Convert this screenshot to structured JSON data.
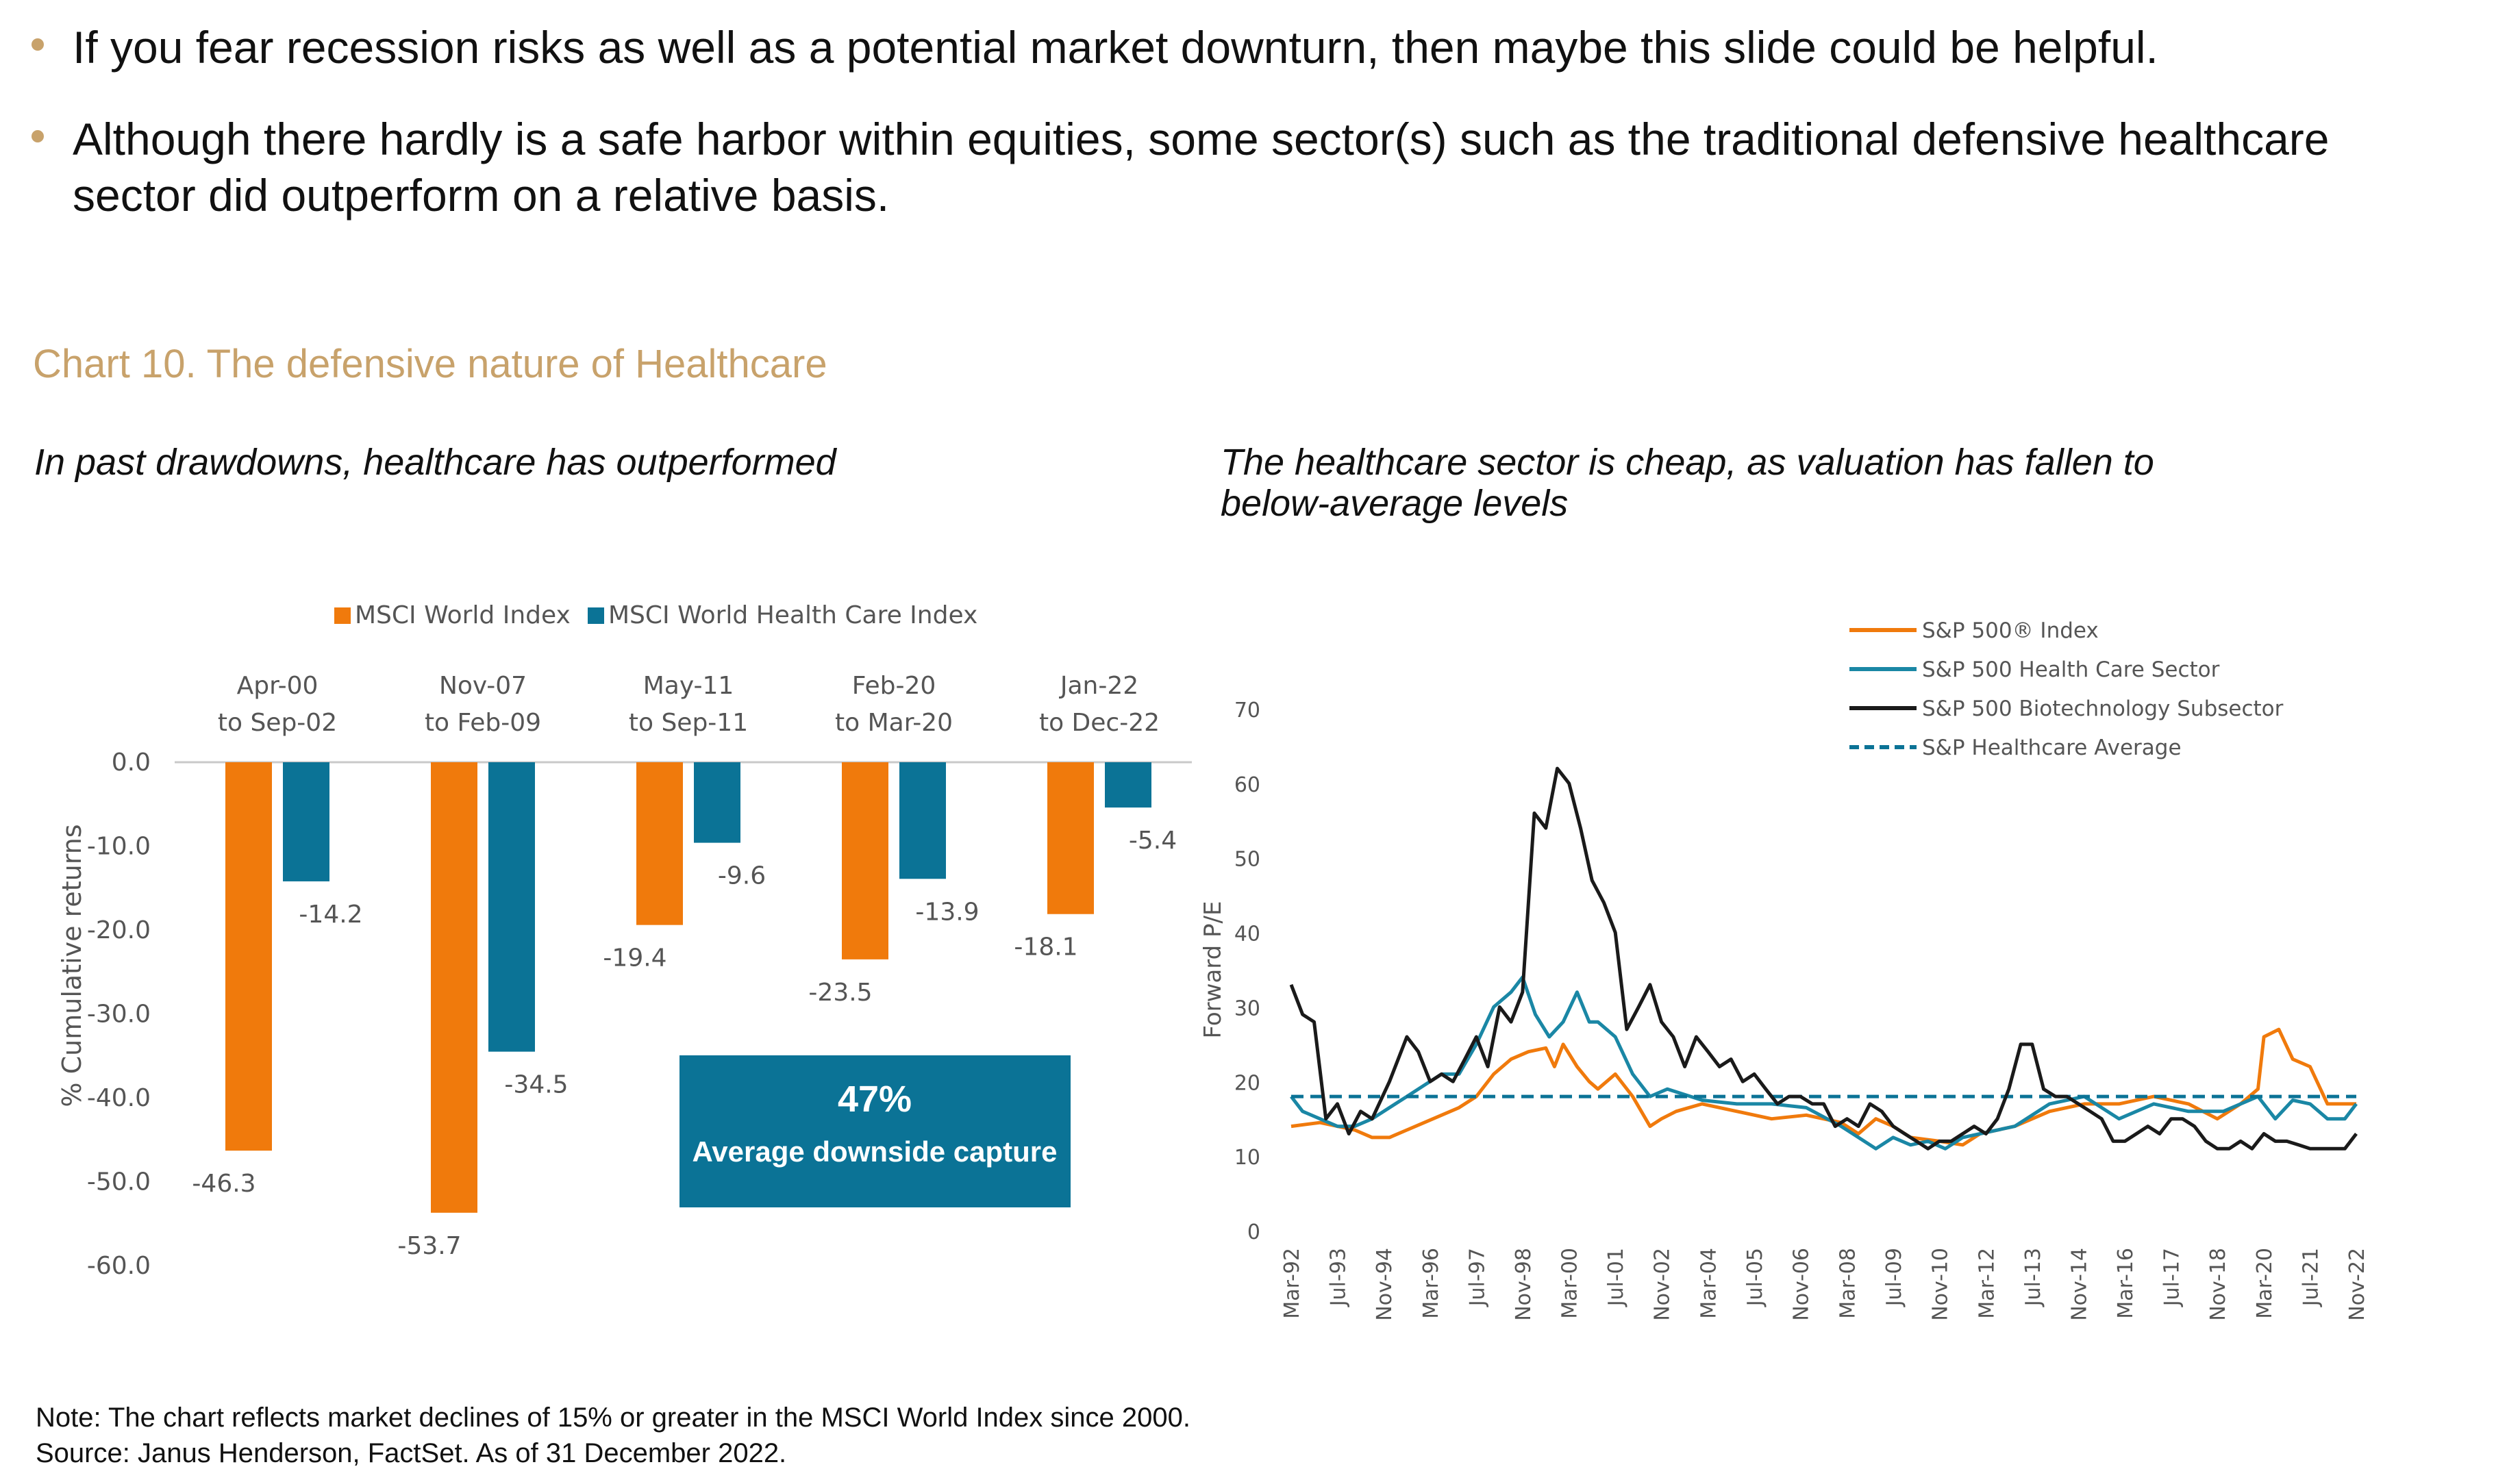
{
  "bullets": [
    "If you fear recession risks as well as a potential market downturn, then maybe this slide could be helpful.",
    "Although there hardly is a safe harbor within equities, some sector(s) such as the traditional defensive healthcare",
    "sector did outperform on a relative basis."
  ],
  "chart_heading": "Chart 10. The defensive nature of Healthcare",
  "left_subtitle": "In past drawdowns, healthcare has outperformed",
  "right_subtitle": "The healthcare sector is cheap, as valuation has fallen to below-average levels",
  "colors": {
    "accent": "#C8A26B",
    "orange": "#F07A0C",
    "teal": "#0B7396",
    "teal_line": "#1A87A5",
    "black": "#1A1A1A"
  },
  "chart_data": [
    {
      "type": "bar",
      "title": "In past drawdowns, healthcare has outperformed",
      "ylabel": "% Cumulative returns",
      "ylim": [
        -60,
        0
      ],
      "yticks": [
        "0.0",
        "-10.0",
        "-20.0",
        "-30.0",
        "-40.0",
        "-50.0",
        "-60.0"
      ],
      "categories": [
        {
          "line1": "Apr-00",
          "line2": "to Sep-02"
        },
        {
          "line1": "Nov-07",
          "line2": "to Feb-09"
        },
        {
          "line1": "May-11",
          "line2": "to Sep-11"
        },
        {
          "line1": "Feb-20",
          "line2": "to Mar-20"
        },
        {
          "line1": "Jan-22",
          "line2": "to Dec-22"
        }
      ],
      "series": [
        {
          "name": "MSCI World Index",
          "values": [
            -46.3,
            -53.7,
            -19.4,
            -23.5,
            -18.1
          ],
          "labels": [
            "-46.3",
            "-53.7",
            "-19.4",
            "-23.5",
            "-18.1"
          ]
        },
        {
          "name": "MSCI World Health Care Index",
          "values": [
            -14.2,
            -34.5,
            -9.6,
            -13.9,
            -5.4
          ],
          "labels": [
            "-14.2",
            "-34.5",
            "-9.6",
            "-13.9",
            "-5.4"
          ]
        }
      ],
      "callout": {
        "value": "47%",
        "label": "Average downside capture"
      }
    },
    {
      "type": "line",
      "title": "The healthcare sector is cheap, as valuation has fallen to below-average levels",
      "ylabel": "Forward P/E",
      "ylim": [
        0,
        70
      ],
      "yticks": [
        "0",
        "10",
        "20",
        "30",
        "40",
        "50",
        "60",
        "70"
      ],
      "x_range": [
        1992.17,
        2022.83
      ],
      "x_ticks": [
        {
          "t": 1992.17,
          "label": "Mar-92"
        },
        {
          "t": 1993.5,
          "label": "Jul-93"
        },
        {
          "t": 1994.83,
          "label": "Nov-94"
        },
        {
          "t": 1996.17,
          "label": "Mar-96"
        },
        {
          "t": 1997.5,
          "label": "Jul-97"
        },
        {
          "t": 1998.83,
          "label": "Nov-98"
        },
        {
          "t": 2000.17,
          "label": "Mar-00"
        },
        {
          "t": 2001.5,
          "label": "Jul-01"
        },
        {
          "t": 2002.83,
          "label": "Nov-02"
        },
        {
          "t": 2004.17,
          "label": "Mar-04"
        },
        {
          "t": 2005.5,
          "label": "Jul-05"
        },
        {
          "t": 2006.83,
          "label": "Nov-06"
        },
        {
          "t": 2008.17,
          "label": "Mar-08"
        },
        {
          "t": 2009.5,
          "label": "Jul-09"
        },
        {
          "t": 2010.83,
          "label": "Nov-10"
        },
        {
          "t": 2012.17,
          "label": "Mar-12"
        },
        {
          "t": 2013.5,
          "label": "Jul-13"
        },
        {
          "t": 2014.83,
          "label": "Nov-14"
        },
        {
          "t": 2016.17,
          "label": "Mar-16"
        },
        {
          "t": 2017.5,
          "label": "Jul-17"
        },
        {
          "t": 2018.83,
          "label": "Nov-18"
        },
        {
          "t": 2020.17,
          "label": "Mar-20"
        },
        {
          "t": 2021.5,
          "label": "Jul-21"
        },
        {
          "t": 2022.83,
          "label": "Nov-22"
        }
      ],
      "series": [
        {
          "name": "S&P 500® Index",
          "points": [
            [
              1992.17,
              14
            ],
            [
              1993,
              14.5
            ],
            [
              1993.5,
              14
            ],
            [
              1994,
              13.5
            ],
            [
              1994.5,
              12.5
            ],
            [
              1995,
              12.5
            ],
            [
              1995.5,
              13.5
            ],
            [
              1996,
              14.5
            ],
            [
              1996.5,
              15.5
            ],
            [
              1997,
              16.5
            ],
            [
              1997.5,
              18
            ],
            [
              1998,
              21
            ],
            [
              1998.5,
              23
            ],
            [
              1999,
              24
            ],
            [
              1999.5,
              24.5
            ],
            [
              1999.75,
              22
            ],
            [
              2000,
              25
            ],
            [
              2000.4,
              22
            ],
            [
              2000.75,
              20
            ],
            [
              2001,
              19
            ],
            [
              2001.5,
              21
            ],
            [
              2002,
              18
            ],
            [
              2002.5,
              14
            ],
            [
              2002.83,
              15
            ],
            [
              2003.25,
              16
            ],
            [
              2004,
              17
            ],
            [
              2005,
              16
            ],
            [
              2006,
              15
            ],
            [
              2007,
              15.5
            ],
            [
              2008,
              14.5
            ],
            [
              2008.5,
              13
            ],
            [
              2009,
              15
            ],
            [
              2009.5,
              14
            ],
            [
              2010,
              12.5
            ],
            [
              2010.83,
              12
            ],
            [
              2011.5,
              11.5
            ],
            [
              2012,
              13
            ],
            [
              2013,
              14
            ],
            [
              2014,
              16
            ],
            [
              2015,
              17
            ],
            [
              2016,
              17
            ],
            [
              2017,
              18
            ],
            [
              2018,
              17
            ],
            [
              2018.83,
              15
            ],
            [
              2019.5,
              17
            ],
            [
              2020,
              19
            ],
            [
              2020.17,
              26
            ],
            [
              2020.6,
              27
            ],
            [
              2021,
              23
            ],
            [
              2021.5,
              22
            ],
            [
              2022,
              17
            ],
            [
              2022.83,
              17
            ]
          ]
        },
        {
          "name": "S&P 500 Health Care Sector",
          "points": [
            [
              1992.17,
              18
            ],
            [
              1992.5,
              16
            ],
            [
              1993,
              15
            ],
            [
              1993.5,
              14
            ],
            [
              1994,
              14
            ],
            [
              1994.5,
              15
            ],
            [
              1995,
              16.5
            ],
            [
              1995.5,
              18
            ],
            [
              1996,
              19.5
            ],
            [
              1996.5,
              21
            ],
            [
              1997,
              21
            ],
            [
              1997.5,
              25
            ],
            [
              1998,
              30
            ],
            [
              1998.5,
              32
            ],
            [
              1998.83,
              34
            ],
            [
              1999.2,
              29
            ],
            [
              1999.6,
              26
            ],
            [
              2000,
              28
            ],
            [
              2000.4,
              32
            ],
            [
              2000.75,
              28
            ],
            [
              2001,
              28
            ],
            [
              2001.5,
              26
            ],
            [
              2002,
              21
            ],
            [
              2002.5,
              18
            ],
            [
              2003,
              19
            ],
            [
              2004,
              17.5
            ],
            [
              2005,
              17
            ],
            [
              2006,
              17
            ],
            [
              2007,
              16.5
            ],
            [
              2008,
              14
            ],
            [
              2008.5,
              12.5
            ],
            [
              2009,
              11
            ],
            [
              2009.5,
              12.5
            ],
            [
              2010,
              11.5
            ],
            [
              2010.5,
              12
            ],
            [
              2011,
              11
            ],
            [
              2011.5,
              12.5
            ],
            [
              2012,
              13
            ],
            [
              2013,
              14
            ],
            [
              2014,
              17
            ],
            [
              2015,
              18
            ],
            [
              2016,
              15
            ],
            [
              2017,
              17
            ],
            [
              2018,
              16
            ],
            [
              2019,
              16
            ],
            [
              2020,
              18
            ],
            [
              2020.5,
              15
            ],
            [
              2021,
              17.5
            ],
            [
              2021.5,
              17
            ],
            [
              2022,
              15
            ],
            [
              2022.5,
              15
            ],
            [
              2022.83,
              17
            ]
          ]
        },
        {
          "name": "S&P 500 Biotechnology Subsector",
          "points": [
            [
              1992.17,
              33
            ],
            [
              1992.5,
              29
            ],
            [
              1992.83,
              28
            ],
            [
              1993.17,
              15
            ],
            [
              1993.5,
              17
            ],
            [
              1993.83,
              13
            ],
            [
              1994.17,
              16
            ],
            [
              1994.5,
              15
            ],
            [
              1995,
              20
            ],
            [
              1995.5,
              26
            ],
            [
              1995.83,
              24
            ],
            [
              1996.17,
              20
            ],
            [
              1996.5,
              21
            ],
            [
              1996.83,
              20
            ],
            [
              1997.17,
              23
            ],
            [
              1997.5,
              26
            ],
            [
              1997.83,
              22
            ],
            [
              1998.17,
              30
            ],
            [
              1998.5,
              28
            ],
            [
              1998.83,
              32
            ],
            [
              1999.17,
              56
            ],
            [
              1999.5,
              54
            ],
            [
              1999.83,
              62
            ],
            [
              2000.17,
              60
            ],
            [
              2000.5,
              54
            ],
            [
              2000.83,
              47
            ],
            [
              2001.17,
              44
            ],
            [
              2001.5,
              40
            ],
            [
              2001.83,
              27
            ],
            [
              2002.17,
              30
            ],
            [
              2002.5,
              33
            ],
            [
              2002.83,
              28
            ],
            [
              2003.17,
              26
            ],
            [
              2003.5,
              22
            ],
            [
              2003.83,
              26
            ],
            [
              2004.17,
              24
            ],
            [
              2004.5,
              22
            ],
            [
              2004.83,
              23
            ],
            [
              2005.17,
              20
            ],
            [
              2005.5,
              21
            ],
            [
              2005.83,
              19
            ],
            [
              2006.17,
              17
            ],
            [
              2006.5,
              18
            ],
            [
              2006.83,
              18
            ],
            [
              2007.17,
              17
            ],
            [
              2007.5,
              17
            ],
            [
              2007.83,
              14
            ],
            [
              2008.17,
              15
            ],
            [
              2008.5,
              14
            ],
            [
              2008.83,
              17
            ],
            [
              2009.17,
              16
            ],
            [
              2009.5,
              14
            ],
            [
              2009.83,
              13
            ],
            [
              2010.17,
              12
            ],
            [
              2010.5,
              11
            ],
            [
              2010.83,
              12
            ],
            [
              2011.17,
              12
            ],
            [
              2011.5,
              13
            ],
            [
              2011.83,
              14
            ],
            [
              2012.17,
              13
            ],
            [
              2012.5,
              15
            ],
            [
              2012.83,
              19
            ],
            [
              2013.17,
              25
            ],
            [
              2013.5,
              25
            ],
            [
              2013.83,
              19
            ],
            [
              2014.17,
              18
            ],
            [
              2014.5,
              18
            ],
            [
              2014.83,
              17
            ],
            [
              2015.17,
              16
            ],
            [
              2015.5,
              15
            ],
            [
              2015.83,
              12
            ],
            [
              2016.17,
              12
            ],
            [
              2016.5,
              13
            ],
            [
              2016.83,
              14
            ],
            [
              2017.17,
              13
            ],
            [
              2017.5,
              15
            ],
            [
              2017.83,
              15
            ],
            [
              2018.17,
              14
            ],
            [
              2018.5,
              12
            ],
            [
              2018.83,
              11
            ],
            [
              2019.17,
              11
            ],
            [
              2019.5,
              12
            ],
            [
              2019.83,
              11
            ],
            [
              2020.17,
              13
            ],
            [
              2020.5,
              12
            ],
            [
              2020.83,
              12
            ],
            [
              2021.17,
              11.5
            ],
            [
              2021.5,
              11
            ],
            [
              2021.83,
              11
            ],
            [
              2022.17,
              11
            ],
            [
              2022.5,
              11
            ],
            [
              2022.83,
              13
            ]
          ]
        },
        {
          "name": "S&P Healthcare Average",
          "style": "dashed",
          "points": [
            [
              1992.17,
              18
            ],
            [
              2022.83,
              18
            ]
          ]
        }
      ]
    }
  ],
  "notes": [
    "Note: The chart reflects market declines of 15% or greater in the MSCI World Index since 2000.",
    "Source: Janus Henderson, FactSet. As of 31 December 2022."
  ]
}
